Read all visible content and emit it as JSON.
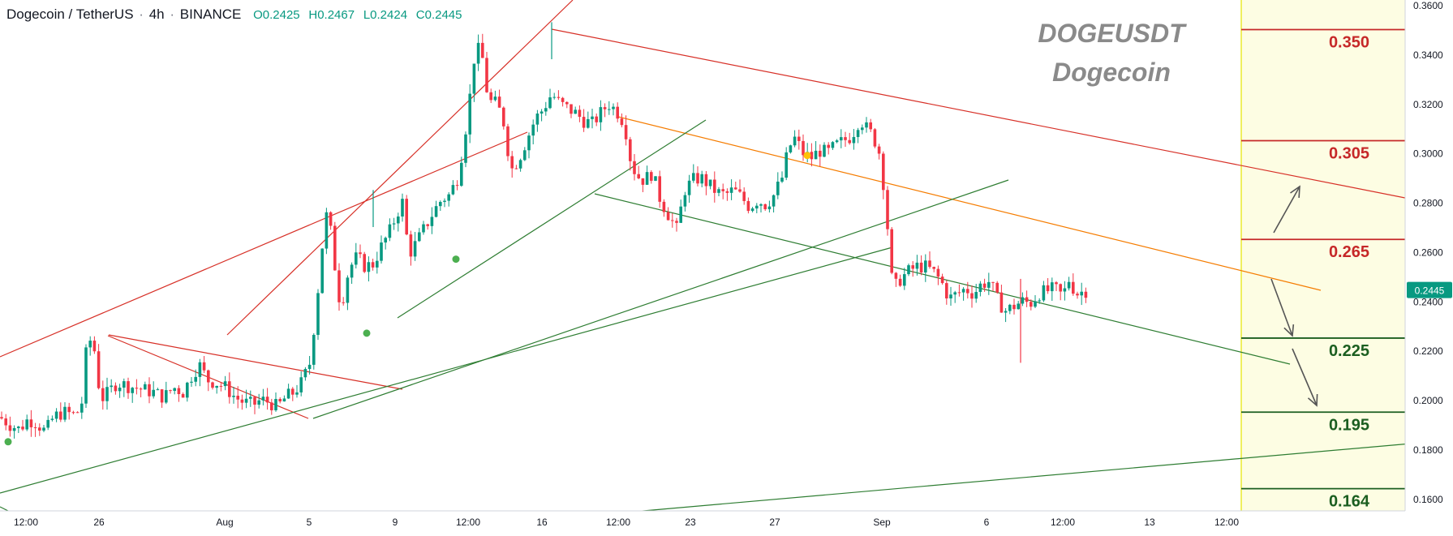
{
  "header": {
    "symbol": "Dogecoin / TetherUS",
    "interval": "4h",
    "exchange": "BINANCE",
    "ohlc": {
      "open": "O0.2425",
      "high": "H0.2467",
      "low": "L0.2424",
      "close": "C0.2445"
    }
  },
  "watermark": {
    "line1": "DOGEUSDT",
    "line2": "Dogecoin"
  },
  "colors": {
    "up": "#089981",
    "down": "#f23645",
    "trend_red": "#d73027",
    "trend_green": "#2e7d32",
    "trend_orange": "#f57c00",
    "zone": "#fdfde3",
    "zone_edge": "#e6e600",
    "last_price": "#089981"
  },
  "chart_data": {
    "type": "candlestick",
    "x_axis_labels": [
      "12:00",
      "26",
      "Aug",
      "5",
      "9",
      "12:00",
      "16",
      "12:00",
      "23",
      "27",
      "Sep",
      "6",
      "12:00",
      "13",
      "12:00"
    ],
    "y_axis_labels": [
      "0.3600",
      "0.3400",
      "0.3200",
      "0.3000",
      "0.2800",
      "0.2600",
      "0.2400",
      "0.2200",
      "0.2000",
      "0.1800",
      "0.1600"
    ],
    "ylim": [
      0.155,
      0.362
    ],
    "last_price": "0.2445",
    "levels": [
      {
        "label": "0.350",
        "value": 0.35,
        "color": "#c62828"
      },
      {
        "label": "0.305",
        "value": 0.305,
        "color": "#c62828"
      },
      {
        "label": "0.265",
        "value": 0.265,
        "color": "#c62828"
      },
      {
        "label": "0.225",
        "value": 0.225,
        "color": "#1b5e20"
      },
      {
        "label": "0.195",
        "value": 0.195,
        "color": "#1b5e20"
      },
      {
        "label": "0.164",
        "value": 0.164,
        "color": "#1b5e20"
      }
    ],
    "price_path": [
      [
        0,
        0.193
      ],
      [
        12,
        0.19
      ],
      [
        24,
        0.188
      ],
      [
        34,
        0.192
      ],
      [
        44,
        0.191
      ],
      [
        56,
        0.187
      ],
      [
        66,
        0.193
      ],
      [
        78,
        0.195
      ],
      [
        90,
        0.194
      ],
      [
        100,
        0.196
      ],
      [
        108,
        0.226
      ],
      [
        116,
        0.221
      ],
      [
        124,
        0.2
      ],
      [
        134,
        0.203
      ],
      [
        144,
        0.207
      ],
      [
        154,
        0.206
      ],
      [
        166,
        0.205
      ],
      [
        178,
        0.204
      ],
      [
        190,
        0.203
      ],
      [
        202,
        0.201
      ],
      [
        214,
        0.205
      ],
      [
        226,
        0.203
      ],
      [
        238,
        0.211
      ],
      [
        246,
        0.214
      ],
      [
        256,
        0.208
      ],
      [
        266,
        0.207
      ],
      [
        278,
        0.205
      ],
      [
        290,
        0.201
      ],
      [
        300,
        0.199
      ],
      [
        312,
        0.198
      ],
      [
        322,
        0.2
      ],
      [
        332,
        0.199
      ],
      [
        342,
        0.197
      ],
      [
        352,
        0.201
      ],
      [
        362,
        0.203
      ],
      [
        372,
        0.207
      ],
      [
        382,
        0.215
      ],
      [
        390,
        0.238
      ],
      [
        398,
        0.265
      ],
      [
        404,
        0.278
      ],
      [
        412,
        0.256
      ],
      [
        420,
        0.237
      ],
      [
        430,
        0.253
      ],
      [
        440,
        0.258
      ],
      [
        450,
        0.254
      ],
      [
        460,
        0.255
      ],
      [
        470,
        0.262
      ],
      [
        480,
        0.268
      ],
      [
        490,
        0.276
      ],
      [
        496,
        0.28
      ],
      [
        504,
        0.259
      ],
      [
        514,
        0.264
      ],
      [
        524,
        0.27
      ],
      [
        534,
        0.276
      ],
      [
        544,
        0.281
      ],
      [
        554,
        0.283
      ],
      [
        564,
        0.29
      ],
      [
        572,
        0.305
      ],
      [
        580,
        0.325
      ],
      [
        586,
        0.343
      ],
      [
        594,
        0.34
      ],
      [
        602,
        0.321
      ],
      [
        612,
        0.32
      ],
      [
        620,
        0.314
      ],
      [
        630,
        0.293
      ],
      [
        640,
        0.298
      ],
      [
        650,
        0.306
      ],
      [
        660,
        0.314
      ],
      [
        670,
        0.318
      ],
      [
        680,
        0.324
      ],
      [
        690,
        0.32
      ],
      [
        700,
        0.318
      ],
      [
        710,
        0.316
      ],
      [
        720,
        0.313
      ],
      [
        730,
        0.312
      ],
      [
        740,
        0.316
      ],
      [
        750,
        0.32
      ],
      [
        760,
        0.317
      ],
      [
        770,
        0.312
      ],
      [
        776,
        0.299
      ],
      [
        784,
        0.291
      ],
      [
        794,
        0.289
      ],
      [
        804,
        0.292
      ],
      [
        814,
        0.281
      ],
      [
        824,
        0.275
      ],
      [
        834,
        0.269
      ],
      [
        844,
        0.285
      ],
      [
        854,
        0.289
      ],
      [
        864,
        0.29
      ],
      [
        874,
        0.287
      ],
      [
        884,
        0.284
      ],
      [
        894,
        0.283
      ],
      [
        904,
        0.285
      ],
      [
        914,
        0.282
      ],
      [
        924,
        0.278
      ],
      [
        934,
        0.281
      ],
      [
        944,
        0.279
      ],
      [
        954,
        0.283
      ],
      [
        964,
        0.29
      ],
      [
        972,
        0.302
      ],
      [
        980,
        0.306
      ],
      [
        990,
        0.3
      ],
      [
        1000,
        0.298
      ],
      [
        1010,
        0.301
      ],
      [
        1020,
        0.3
      ],
      [
        1030,
        0.303
      ],
      [
        1040,
        0.305
      ],
      [
        1050,
        0.307
      ],
      [
        1060,
        0.314
      ],
      [
        1068,
        0.31
      ],
      [
        1076,
        0.307
      ],
      [
        1084,
        0.3
      ],
      [
        1092,
        0.28
      ],
      [
        1098,
        0.25
      ],
      [
        1104,
        0.246
      ],
      [
        1110,
        0.249
      ],
      [
        1120,
        0.252
      ],
      [
        1130,
        0.254
      ],
      [
        1140,
        0.254
      ],
      [
        1150,
        0.252
      ],
      [
        1160,
        0.248
      ],
      [
        1170,
        0.241
      ],
      [
        1180,
        0.243
      ],
      [
        1190,
        0.245
      ],
      [
        1200,
        0.243
      ],
      [
        1210,
        0.247
      ],
      [
        1220,
        0.248
      ],
      [
        1230,
        0.24
      ],
      [
        1240,
        0.236
      ],
      [
        1250,
        0.238
      ],
      [
        1260,
        0.24
      ],
      [
        1270,
        0.239
      ],
      [
        1280,
        0.243
      ],
      [
        1290,
        0.244
      ],
      [
        1300,
        0.245
      ],
      [
        1310,
        0.242
      ],
      [
        1318,
        0.249
      ],
      [
        1326,
        0.243
      ],
      [
        1336,
        0.244
      ],
      [
        1340,
        0.2445
      ]
    ]
  }
}
